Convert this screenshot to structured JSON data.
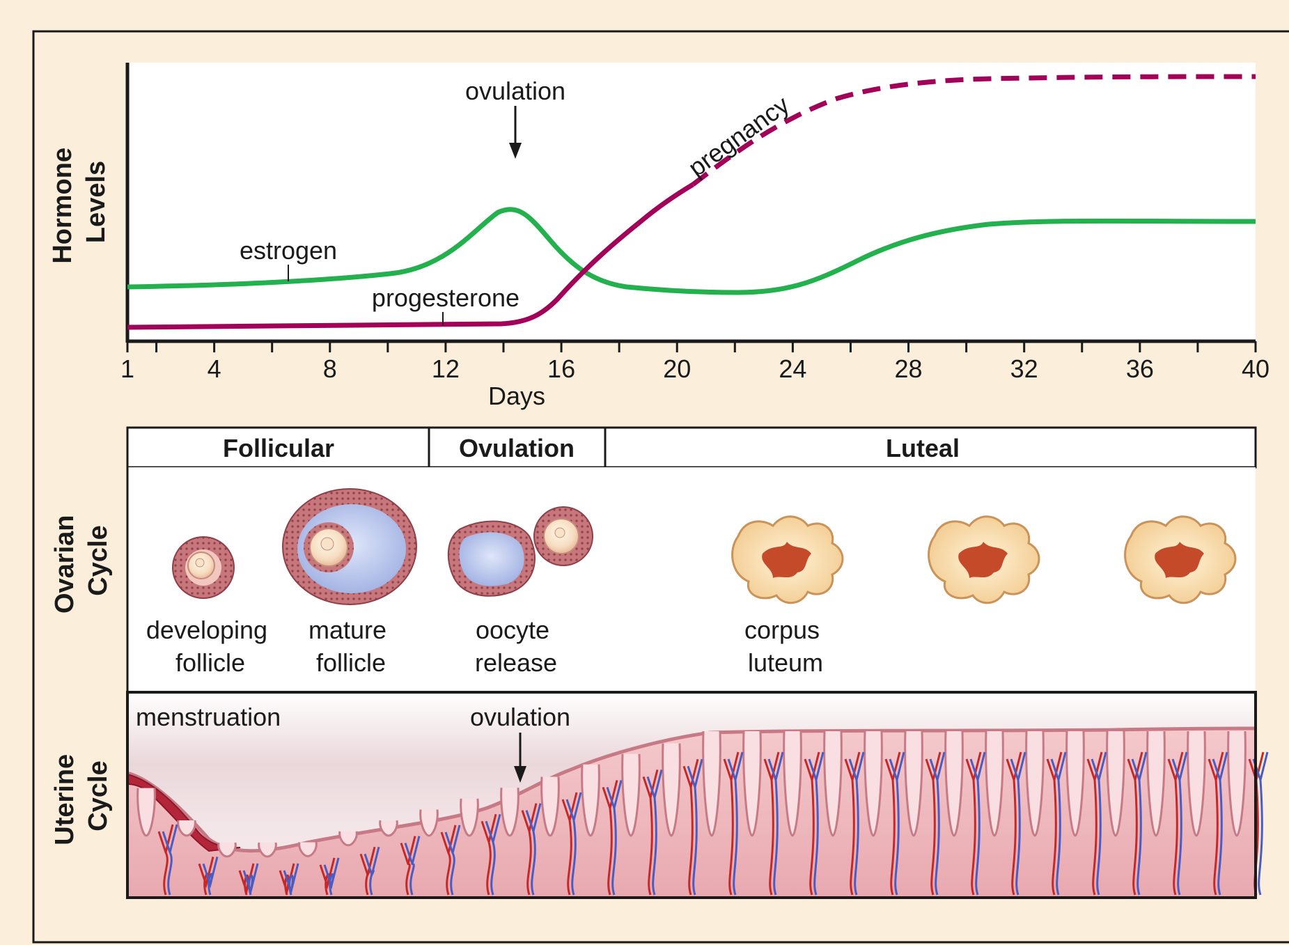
{
  "hormone_chart": {
    "y_axis_label_line1": "Hormone",
    "y_axis_label_line2": "Levels",
    "x_axis_label": "Days",
    "x_ticks": [
      "1",
      "4",
      "8",
      "12",
      "16",
      "20",
      "24",
      "28",
      "32",
      "36",
      "40"
    ],
    "ovulation_label": "ovulation",
    "estrogen_label": "estrogen",
    "progesterone_label": "progesterone",
    "pregnancy_label": "pregnancy",
    "colors": {
      "estrogen": "#22b14c",
      "progesterone": "#a3005a",
      "axis": "#1a1a1a"
    }
  },
  "phases": {
    "follicular": "Follicular",
    "ovulation": "Ovulation",
    "luteal": "Luteal"
  },
  "ovarian_cycle": {
    "row_label_line1": "Ovarian",
    "row_label_line2": "Cycle",
    "developing_follicle_line1": "developing",
    "developing_follicle_line2": "follicle",
    "mature_follicle_line1": "mature",
    "mature_follicle_line2": "follicle",
    "oocyte_release_line1": "oocyte",
    "oocyte_release_line2": "release",
    "corpus_luteum_line1": "corpus",
    "corpus_luteum_line2": "luteum"
  },
  "uterine_cycle": {
    "row_label_line1": "Uterine",
    "row_label_line2": "Cycle",
    "menstruation_label": "menstruation",
    "ovulation_label": "ovulation"
  }
}
